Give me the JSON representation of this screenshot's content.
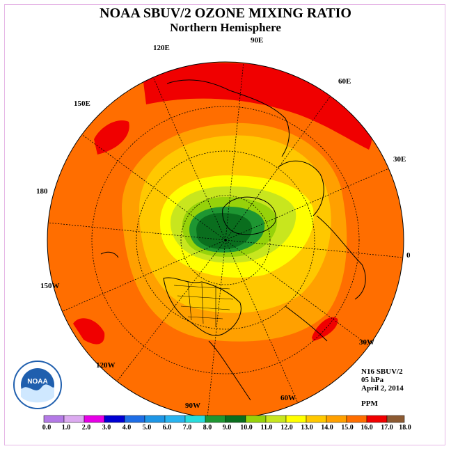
{
  "title": "NOAA SBUV/2 OZONE MIXING RATIO",
  "subtitle": "Northern Hemisphere",
  "longitude_labels": [
    "90E",
    "60E",
    "30E",
    "0",
    "30W",
    "60W",
    "90W",
    "120W",
    "150W",
    "180",
    "150E",
    "120E"
  ],
  "info": {
    "instrument": "N16 SBUV/2",
    "level": "05 hPa",
    "date": "April 2, 2014",
    "units": "PPM"
  },
  "colorbar": {
    "ticks": [
      "0.0",
      "1.0",
      "2.0",
      "3.0",
      "4.0",
      "5.0",
      "6.0",
      "7.0",
      "8.0",
      "9.0",
      "10.0",
      "11.0",
      "12.0",
      "13.0",
      "14.0",
      "15.0",
      "16.0",
      "17.0",
      "18.0"
    ],
    "colors": [
      "#b47ae6",
      "#dcaaf0",
      "#e600e6",
      "#0000d2",
      "#1e6ee6",
      "#1e96e6",
      "#28b4f0",
      "#28dcdc",
      "#1e9632",
      "#0a6e1e",
      "#96d20a",
      "#c8e61e",
      "#ffff00",
      "#ffc800",
      "#ffa000",
      "#ff6e00",
      "#f00000",
      "#8c5a32"
    ]
  },
  "logo": {
    "text": "NOAA"
  }
}
